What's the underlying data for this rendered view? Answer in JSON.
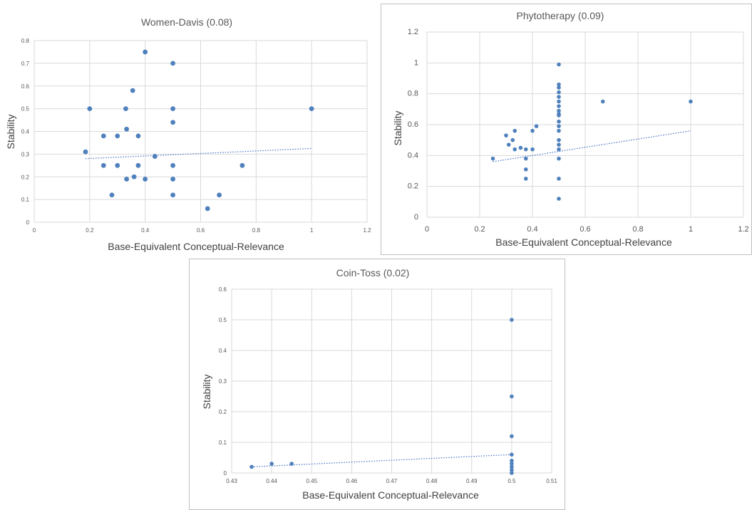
{
  "chart_data": [
    {
      "type": "scatter",
      "title": "Women-Davis (0.08)",
      "xlabel": "Base-Equivalent Conceptual-Relevance",
      "ylabel": "Stability",
      "xlim": [
        0,
        1.2
      ],
      "ylim": [
        0,
        0.8
      ],
      "xticks": [
        0,
        0.2,
        0.4,
        0.6,
        0.8,
        1,
        1.2
      ],
      "yticks": [
        0,
        0.1,
        0.2,
        0.3,
        0.4,
        0.5,
        0.6,
        0.7,
        0.8
      ],
      "xtick_labels": [
        "0",
        "0.2",
        "0.4",
        "0.6",
        "0.8",
        "1",
        "1.2"
      ],
      "ytick_labels": [
        "0",
        "0.1",
        "0.2",
        "0.3",
        "0.4",
        "0.5",
        "0.6",
        "0.7",
        "0.8"
      ],
      "grid": true,
      "trendline": {
        "type": "linear",
        "x": [
          0.185,
          1.0
        ],
        "y": [
          0.28,
          0.325
        ]
      },
      "points": [
        [
          0.185,
          0.31
        ],
        [
          0.2,
          0.5
        ],
        [
          0.25,
          0.38
        ],
        [
          0.25,
          0.25
        ],
        [
          0.28,
          0.12
        ],
        [
          0.3,
          0.38
        ],
        [
          0.3,
          0.25
        ],
        [
          0.33,
          0.5
        ],
        [
          0.333,
          0.41
        ],
        [
          0.333,
          0.19
        ],
        [
          0.355,
          0.58
        ],
        [
          0.36,
          0.2
        ],
        [
          0.375,
          0.38
        ],
        [
          0.375,
          0.25
        ],
        [
          0.4,
          0.75
        ],
        [
          0.4,
          0.19
        ],
        [
          0.435,
          0.29
        ],
        [
          0.5,
          0.7
        ],
        [
          0.5,
          0.5
        ],
        [
          0.5,
          0.44
        ],
        [
          0.5,
          0.25
        ],
        [
          0.5,
          0.19
        ],
        [
          0.5,
          0.12
        ],
        [
          0.625,
          0.06
        ],
        [
          0.667,
          0.12
        ],
        [
          0.75,
          0.25
        ],
        [
          1.0,
          0.5
        ]
      ]
    },
    {
      "type": "scatter",
      "title": "Phytotherapy (0.09)",
      "xlabel": "Base-Equivalent Conceptual-Relevance",
      "ylabel": "Stability",
      "xlim": [
        0,
        1.2
      ],
      "ylim": [
        0,
        1.2
      ],
      "xticks": [
        0,
        0.2,
        0.4,
        0.6,
        0.8,
        1,
        1.2
      ],
      "yticks": [
        0,
        0.2,
        0.4,
        0.6,
        0.8,
        1,
        1.2
      ],
      "xtick_labels": [
        "0",
        "0.2",
        "0.4",
        "0.6",
        "0.8",
        "1",
        "1.2"
      ],
      "ytick_labels": [
        "0",
        "0.2",
        "0.4",
        "0.6",
        "0.8",
        "1",
        "1.2"
      ],
      "grid": true,
      "trendline": {
        "type": "linear",
        "x": [
          0.25,
          1.0
        ],
        "y": [
          0.36,
          0.56
        ]
      },
      "points": [
        [
          0.25,
          0.38
        ],
        [
          0.3,
          0.53
        ],
        [
          0.31,
          0.47
        ],
        [
          0.325,
          0.5
        ],
        [
          0.333,
          0.56
        ],
        [
          0.333,
          0.44
        ],
        [
          0.355,
          0.45
        ],
        [
          0.375,
          0.44
        ],
        [
          0.375,
          0.38
        ],
        [
          0.375,
          0.31
        ],
        [
          0.375,
          0.25
        ],
        [
          0.4,
          0.56
        ],
        [
          0.4,
          0.44
        ],
        [
          0.415,
          0.59
        ],
        [
          0.5,
          0.99
        ],
        [
          0.5,
          0.86
        ],
        [
          0.5,
          0.84
        ],
        [
          0.5,
          0.81
        ],
        [
          0.5,
          0.78
        ],
        [
          0.5,
          0.75
        ],
        [
          0.5,
          0.72
        ],
        [
          0.5,
          0.69
        ],
        [
          0.5,
          0.67
        ],
        [
          0.5,
          0.66
        ],
        [
          0.5,
          0.62
        ],
        [
          0.5,
          0.59
        ],
        [
          0.5,
          0.56
        ],
        [
          0.5,
          0.5
        ],
        [
          0.5,
          0.47
        ],
        [
          0.5,
          0.44
        ],
        [
          0.5,
          0.38
        ],
        [
          0.5,
          0.25
        ],
        [
          0.5,
          0.12
        ],
        [
          0.667,
          0.75
        ],
        [
          1.0,
          0.75
        ]
      ]
    },
    {
      "type": "scatter",
      "title": "Coin-Toss (0.02)",
      "xlabel": "Base-Equivalent Conceptual-Relevance",
      "ylabel": "Stability",
      "xlim": [
        0.43,
        0.51
      ],
      "ylim": [
        0,
        0.6
      ],
      "xticks": [
        0.43,
        0.44,
        0.45,
        0.46,
        0.47,
        0.48,
        0.49,
        0.5,
        0.51
      ],
      "yticks": [
        0,
        0.1,
        0.2,
        0.3,
        0.4,
        0.5,
        0.6
      ],
      "xtick_labels": [
        "0.43",
        "0.44",
        "0.45",
        "0.46",
        "0.47",
        "0.48",
        "0.49",
        "0.5",
        "0.51"
      ],
      "ytick_labels": [
        "0",
        "0.1",
        "0.2",
        "0.3",
        "0.4",
        "0.5",
        "0.6"
      ],
      "grid": true,
      "trendline": {
        "type": "linear",
        "x": [
          0.435,
          0.5
        ],
        "y": [
          0.02,
          0.06
        ]
      },
      "points": [
        [
          0.435,
          0.02
        ],
        [
          0.44,
          0.03
        ],
        [
          0.445,
          0.03
        ],
        [
          0.5,
          0.5
        ],
        [
          0.5,
          0.25
        ],
        [
          0.5,
          0.12
        ],
        [
          0.5,
          0.06
        ],
        [
          0.5,
          0.04
        ],
        [
          0.5,
          0.03
        ],
        [
          0.5,
          0.02
        ],
        [
          0.5,
          0.01
        ],
        [
          0.5,
          0.0
        ]
      ]
    }
  ]
}
